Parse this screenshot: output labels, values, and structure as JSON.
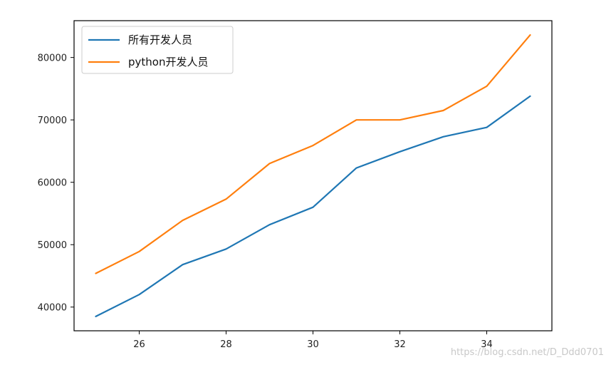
{
  "chart_data": {
    "type": "line",
    "x": [
      25,
      26,
      27,
      28,
      29,
      30,
      31,
      32,
      33,
      34,
      35
    ],
    "series": [
      {
        "name": "所有开发人员",
        "color": "#1f77b4",
        "values": [
          38500,
          42000,
          46800,
          49300,
          53200,
          56000,
          62300,
          64900,
          67300,
          68800,
          73800
        ]
      },
      {
        "name": "python开发人员",
        "color": "#ff7f0e",
        "values": [
          45400,
          48900,
          53900,
          57300,
          63000,
          65900,
          70000,
          70000,
          71500,
          75400,
          83600
        ]
      }
    ],
    "xticks": [
      "26",
      "28",
      "30",
      "32",
      "34"
    ],
    "yticks": [
      "40000",
      "50000",
      "60000",
      "70000",
      "80000"
    ],
    "xlim": [
      24.5,
      35.5
    ],
    "ylim": [
      36200,
      85900
    ],
    "grid": false,
    "legend_position": "upper left"
  },
  "watermark": "https://blog.csdn.net/D_Ddd0701"
}
